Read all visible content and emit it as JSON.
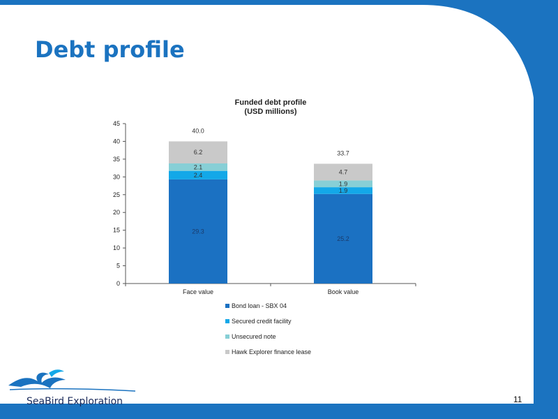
{
  "slide": {
    "title": "Debt profile",
    "page_number": "11",
    "logo_text": "SeaBird Exploration"
  },
  "colors": {
    "frame": "#1b73c0",
    "bond": "#1b71c2",
    "secured": "#13a8e8",
    "unsecured": "#87cfd6",
    "hawk": "#c9c9c9"
  },
  "chart_data": {
    "type": "bar",
    "stacked": true,
    "title": "Funded debt profile",
    "subtitle": "(USD millions)",
    "categories": [
      "Face value",
      "Book value"
    ],
    "ylim": [
      0,
      45
    ],
    "yticks": [
      0,
      5,
      10,
      15,
      20,
      25,
      30,
      35,
      40,
      45
    ],
    "series": [
      {
        "name": "Bond loan - SBX 04",
        "values": [
          29.3,
          25.2
        ],
        "labels": [
          "29.3",
          "25.2"
        ],
        "color": "#1b71c2"
      },
      {
        "name": "Secured credit facility",
        "values": [
          2.4,
          1.9
        ],
        "labels": [
          "2.4",
          "1.9"
        ],
        "color": "#13a8e8"
      },
      {
        "name": "Unsecured note",
        "values": [
          2.1,
          1.9
        ],
        "labels": [
          "2.1",
          "1.9"
        ],
        "color": "#87cfd6"
      },
      {
        "name": "Hawk Explorer finance lease",
        "values": [
          6.2,
          4.7
        ],
        "labels": [
          "6.2",
          "4.7"
        ],
        "color": "#c9c9c9"
      }
    ],
    "totals": [
      40.0,
      33.7
    ],
    "total_labels": [
      "40.0",
      "33.7"
    ],
    "legend_position": "bottom",
    "grid": false
  }
}
